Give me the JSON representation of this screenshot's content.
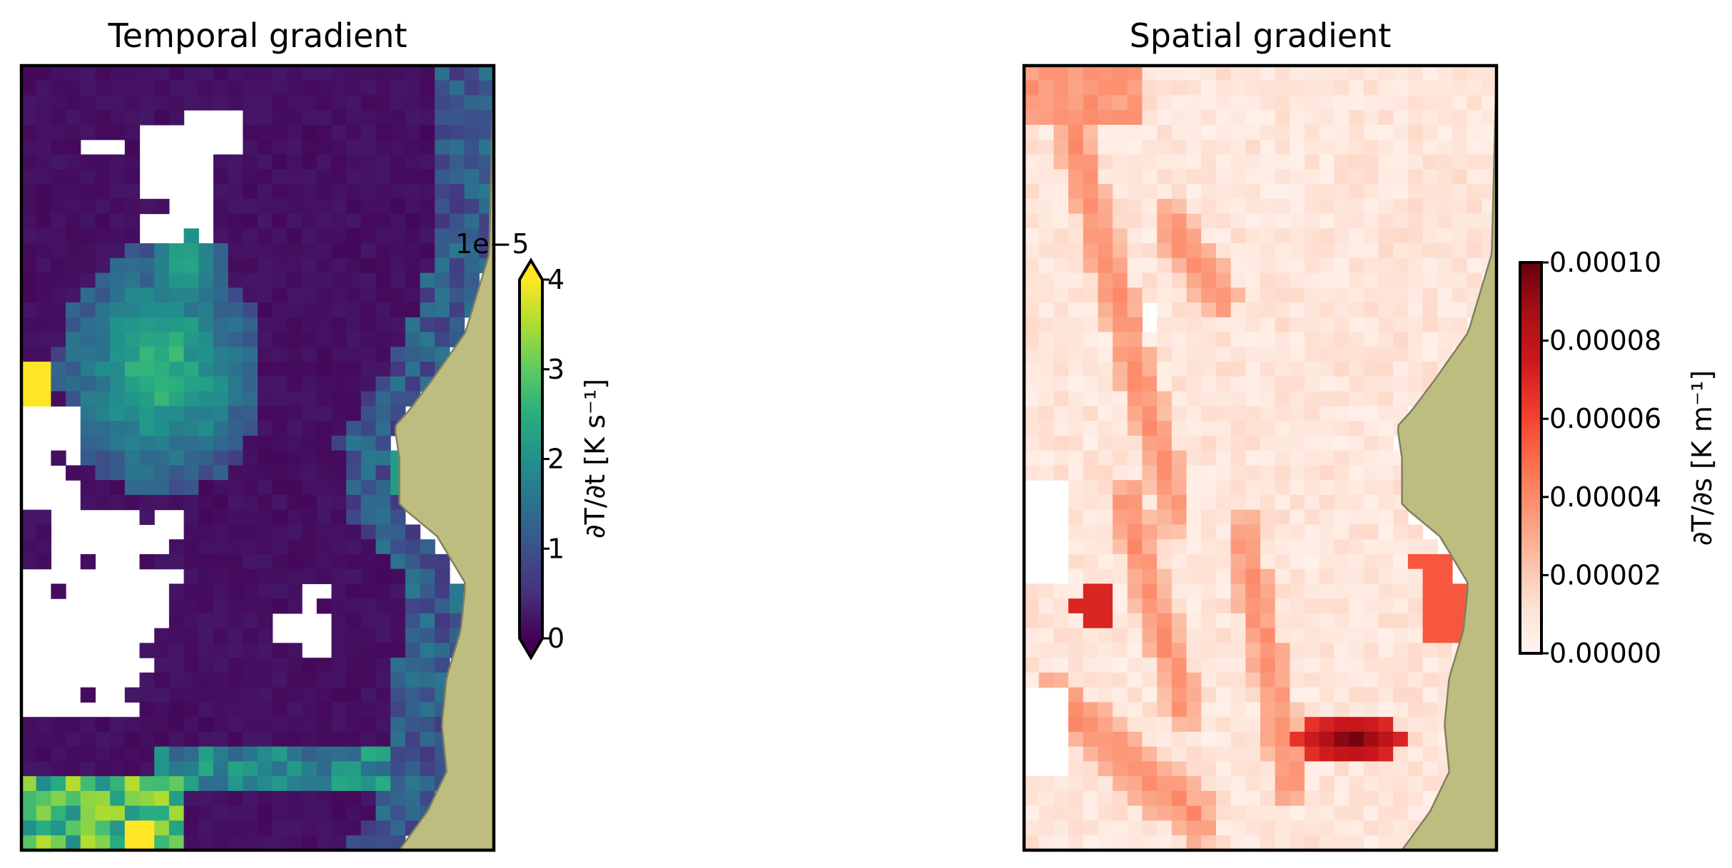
{
  "chart_data": [
    {
      "type": "heatmap",
      "title": "Temporal gradient",
      "colormap": "viridis",
      "colorbar": {
        "label": "∂T/∂t [K s⁻¹]",
        "offset_text": "1e−5",
        "ticks": [
          "0",
          "1",
          "2",
          "3",
          "4"
        ],
        "range": [
          0,
          4
        ],
        "scale_factor": 1e-05,
        "extend": "both"
      },
      "land_color": "#bdbd7f",
      "land_edge_color": "#808060",
      "missing_color": "#ffffff",
      "grid": false
    },
    {
      "type": "heatmap",
      "title": "Spatial gradient",
      "colormap": "Reds",
      "colorbar": {
        "label": "∂T/∂s [K m⁻¹]",
        "ticks": [
          "0.00000",
          "0.00002",
          "0.00004",
          "0.00006",
          "0.00008",
          "0.00010"
        ],
        "range": [
          0,
          0.0001
        ],
        "extend": "neither"
      },
      "land_color": "#bdbd7f",
      "land_edge_color": "#808060",
      "missing_color": "#ffffff",
      "grid": false
    }
  ]
}
